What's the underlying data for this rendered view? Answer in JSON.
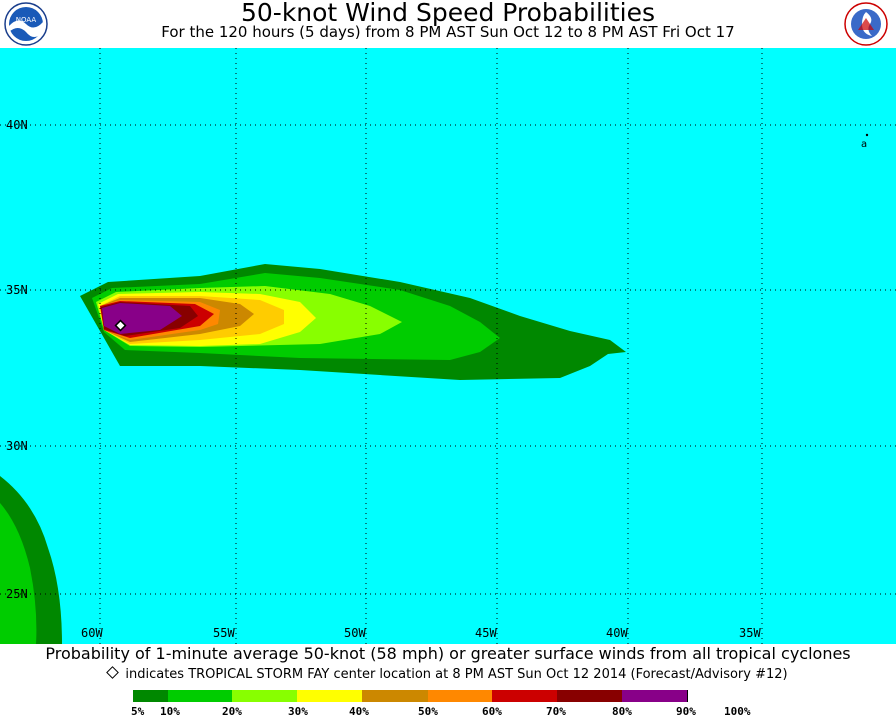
{
  "header": {
    "title": "50-knot Wind Speed Probabilities",
    "subtitle": "For the 120 hours (5 days) from 8 PM AST Sun Oct 12 to 8 PM AST Fri Oct 17",
    "left_logo": "NOAA",
    "right_logo": "NATIONAL WEATHER SERVICE"
  },
  "map": {
    "ocean_color": "#00ffff",
    "lat_labels": [
      "40N",
      "35N",
      "30N",
      "25N"
    ],
    "lon_labels": [
      "60W",
      "55W",
      "50W",
      "45W",
      "40W",
      "35W"
    ],
    "storm_marker": "storm-center-diamond",
    "small_label": "a"
  },
  "footer": {
    "line1": "Probability of 1-minute average 50-knot (58 mph) or greater surface winds from all tropical cyclones",
    "line2": "indicates TROPICAL STORM FAY center location at 8 PM AST Sun Oct 12 2014 (Forecast/Advisory #12)"
  },
  "legend": {
    "colors": [
      "#008800",
      "#00cc00",
      "#88ff00",
      "#ffff00",
      "#cc8800",
      "#ff8800",
      "#cc0000",
      "#880000",
      "#880088"
    ],
    "labels": [
      "5%",
      "10%",
      "20%",
      "30%",
      "40%",
      "50%",
      "60%",
      "70%",
      "80%",
      "90%",
      "100%"
    ]
  }
}
